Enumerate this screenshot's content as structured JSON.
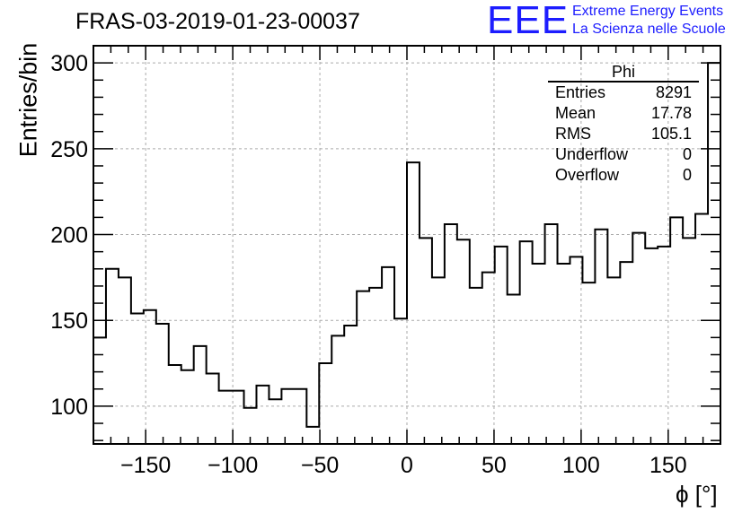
{
  "header": {
    "title": "FRAS-03-2019-01-23-00037",
    "logo_text": "EEE",
    "logo_line1": "Extreme Energy Events",
    "logo_line2": "La Scienza nelle Scuole"
  },
  "stats_box": {
    "name": "Phi",
    "rows": [
      {
        "label": "Entries",
        "value": "8291"
      },
      {
        "label": "Mean",
        "value": "17.78"
      },
      {
        "label": "RMS",
        "value": "105.1"
      },
      {
        "label": "Underflow",
        "value": "0"
      },
      {
        "label": "Overflow",
        "value": "0"
      }
    ]
  },
  "colors": {
    "line": "#000000",
    "grid": "#aaaaaa",
    "logo": "#1d1dff"
  },
  "chart_data": {
    "type": "histogram",
    "title": "FRAS-03-2019-01-23-00037",
    "xlabel": "ϕ [°]",
    "ylabel": "Entries/bin",
    "xlim": [
      -180,
      180
    ],
    "ylim": [
      78,
      310
    ],
    "bin_width": 7.2,
    "bin_start": -180,
    "values": [
      140,
      180,
      175,
      154,
      156,
      148,
      124,
      121,
      135,
      119,
      109,
      109,
      99,
      112,
      104,
      110,
      110,
      88,
      125,
      141,
      147,
      167,
      169,
      181,
      151,
      242,
      198,
      175,
      206,
      197,
      169,
      178,
      193,
      165,
      196,
      183,
      206,
      183,
      187,
      172,
      203,
      175,
      184,
      201,
      192,
      193,
      210,
      198,
      212,
      300
    ],
    "xticks": [
      -150,
      -100,
      -50,
      0,
      50,
      100,
      150
    ],
    "yticks": [
      100,
      150,
      200,
      250,
      300
    ],
    "grid": true
  }
}
